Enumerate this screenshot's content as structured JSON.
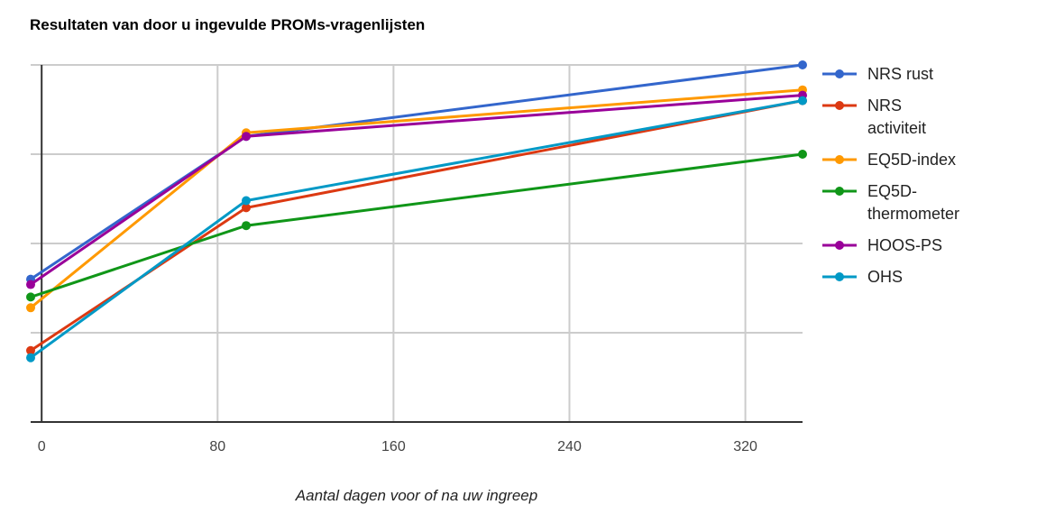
{
  "chart_data": {
    "type": "line",
    "title": "Resultaten van door u ingevulde PROMs-vragenlijsten",
    "xlabel": "Aantal dagen voor of na uw ingreep",
    "ylabel": "",
    "xlim": [
      -5,
      346
    ],
    "ylim": [
      0,
      100
    ],
    "x_ticks": [
      "0",
      "80",
      "160",
      "240",
      "320"
    ],
    "x_tick_values": [
      0,
      80,
      160,
      240,
      320
    ],
    "y_gridlines": [
      0,
      25,
      50,
      75,
      100
    ],
    "grid": true,
    "legend": "right",
    "x": [
      -5,
      93,
      346
    ],
    "series": [
      {
        "name": "NRS rust",
        "legend_lines": [
          "NRS rust"
        ],
        "color": "#3366cc",
        "values": [
          40,
          80,
          100
        ]
      },
      {
        "name": "NRS activiteit",
        "legend_lines": [
          "NRS",
          "activiteit"
        ],
        "color": "#dc3912",
        "values": [
          20,
          60,
          90
        ]
      },
      {
        "name": "EQ5D-index",
        "legend_lines": [
          "EQ5D-index"
        ],
        "color": "#ff9900",
        "values": [
          32,
          81,
          93
        ]
      },
      {
        "name": "EQ5D-thermometer",
        "legend_lines": [
          "EQ5D-",
          "thermometer"
        ],
        "color": "#109618",
        "values": [
          35,
          55,
          75
        ]
      },
      {
        "name": "HOOS-PS",
        "legend_lines": [
          "HOOS-PS"
        ],
        "color": "#990099",
        "values": [
          38.5,
          80,
          91.5
        ]
      },
      {
        "name": "OHS",
        "legend_lines": [
          "OHS"
        ],
        "color": "#0099c6",
        "values": [
          18,
          62,
          90
        ]
      }
    ]
  }
}
